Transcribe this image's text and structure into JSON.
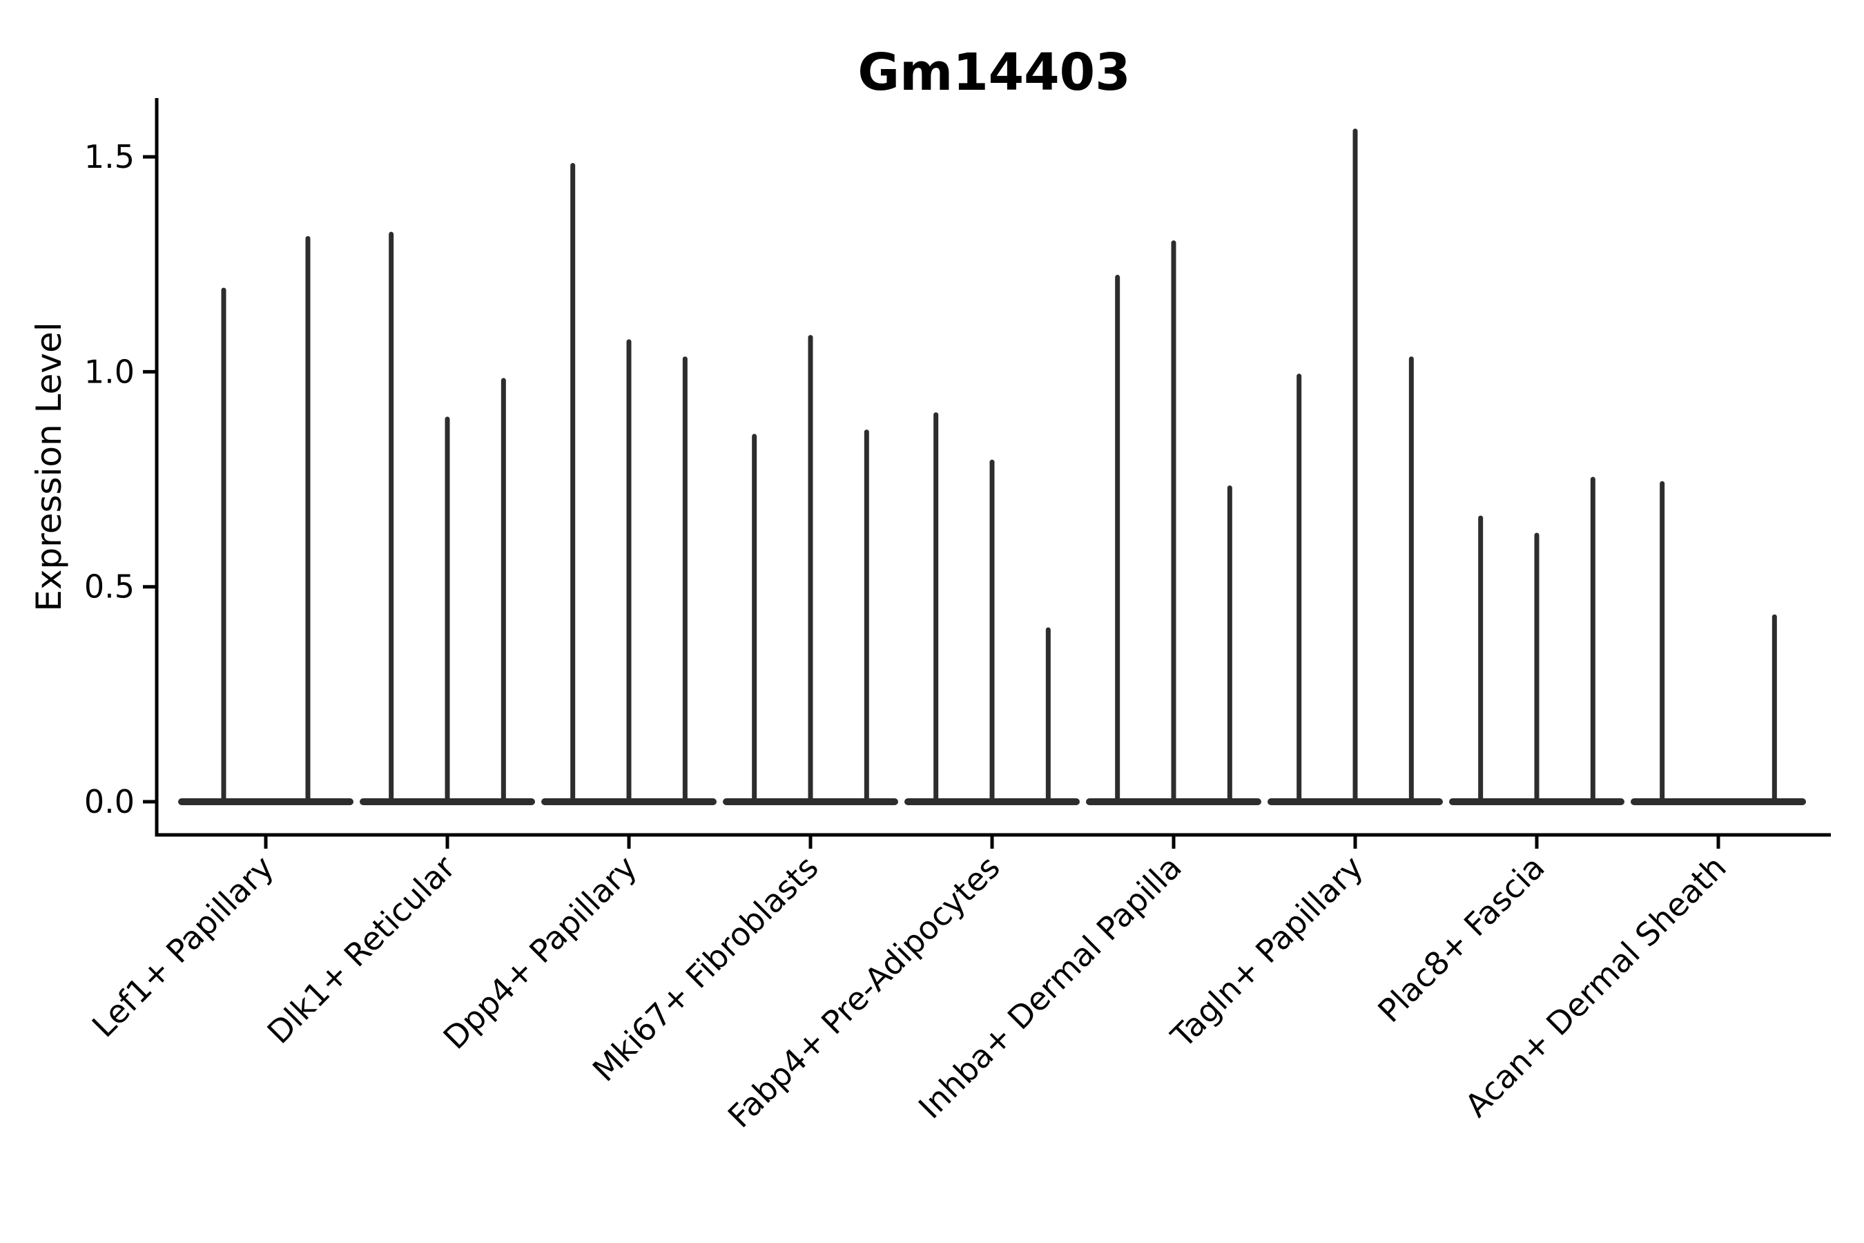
{
  "title": "Gm14403",
  "chart_data": {
    "type": "violin",
    "title": "Gm14403",
    "subtitle": "",
    "xlabel": "",
    "ylabel": "Expression Level",
    "grid": false,
    "legend": "none",
    "ylim": [
      -0.08,
      1.64
    ],
    "yticks": [
      "0.0",
      "0.5",
      "1.0",
      "1.5"
    ],
    "ytick_values": [
      0.0,
      0.5,
      1.0,
      1.5
    ],
    "categories": [
      "Lef1+ Papillary",
      "Dlk1+ Reticular",
      "Dpp4+ Papillary",
      "Mki67+ Fibroblasts",
      "Fabp4+ Pre-Adipocytes",
      "Inhba+ Dermal Papilla",
      "Tagln+ Papillary",
      "Plac8+ Fascia",
      "Acan+ Dermal Sheath"
    ],
    "groups": [
      {
        "category": "Lef1+ Papillary",
        "violin_maxima": [
          1.19,
          1.31
        ]
      },
      {
        "category": "Dlk1+ Reticular",
        "violin_maxima": [
          1.32,
          0.89,
          0.98
        ]
      },
      {
        "category": "Dpp4+ Papillary",
        "violin_maxima": [
          1.48,
          1.07,
          1.03
        ]
      },
      {
        "category": "Mki67+ Fibroblasts",
        "violin_maxima": [
          0.85,
          1.08,
          0.86
        ]
      },
      {
        "category": "Fabp4+ Pre-Adipocytes",
        "violin_maxima": [
          0.9,
          0.79,
          0.4
        ]
      },
      {
        "category": "Inhba+ Dermal Papilla",
        "violin_maxima": [
          1.22,
          1.3,
          0.73
        ]
      },
      {
        "category": "Tagln+ Papillary",
        "violin_maxima": [
          0.99,
          1.56,
          1.03
        ]
      },
      {
        "category": "Plac8+ Fascia",
        "violin_maxima": [
          0.66,
          0.62,
          0.75
        ]
      },
      {
        "category": "Acan+ Dermal Sheath",
        "violin_maxima": [
          0.74,
          0.0,
          0.43
        ]
      }
    ],
    "annotations": [],
    "colors": {
      "spike": "#2d2d2d",
      "axis": "#000000",
      "background": "#ffffff"
    }
  }
}
